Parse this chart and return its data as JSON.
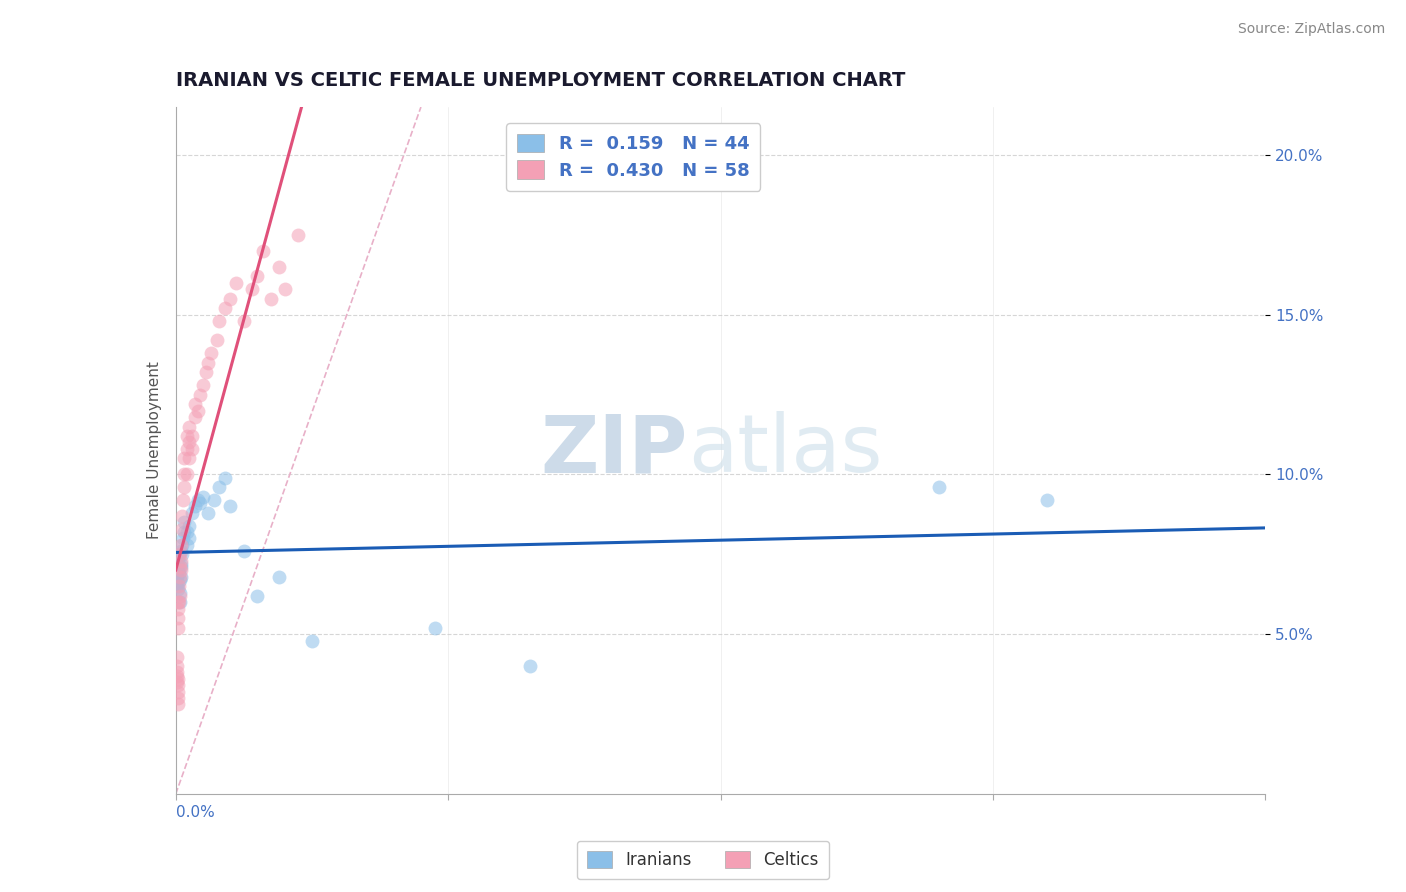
{
  "title": "IRANIAN VS CELTIC FEMALE UNEMPLOYMENT CORRELATION CHART",
  "source": "Source: ZipAtlas.com",
  "ylabel": "Female Unemployment",
  "yaxis_ticks": [
    0.05,
    0.1,
    0.15,
    0.2
  ],
  "yaxis_labels": [
    "5.0%",
    "10.0%",
    "15.0%",
    "20.0%"
  ],
  "xlim": [
    0.0,
    0.4
  ],
  "ylim": [
    0.0,
    0.215
  ],
  "legend_entries": [
    {
      "label": "R =  0.159   N = 44",
      "color": "#8bbfe8"
    },
    {
      "label": "R =  0.430   N = 58",
      "color": "#f4a0b5"
    }
  ],
  "iranian_x": [
    0.0005,
    0.0005,
    0.0006,
    0.0007,
    0.0008,
    0.0009,
    0.001,
    0.001,
    0.0012,
    0.0013,
    0.0015,
    0.0016,
    0.0017,
    0.0018,
    0.002,
    0.002,
    0.002,
    0.0022,
    0.0024,
    0.0025,
    0.003,
    0.003,
    0.004,
    0.004,
    0.005,
    0.005,
    0.006,
    0.007,
    0.008,
    0.009,
    0.01,
    0.012,
    0.014,
    0.016,
    0.018,
    0.02,
    0.025,
    0.03,
    0.038,
    0.05,
    0.095,
    0.13,
    0.28,
    0.32
  ],
  "iranian_y": [
    0.068,
    0.072,
    0.065,
    0.07,
    0.064,
    0.071,
    0.073,
    0.066,
    0.069,
    0.075,
    0.06,
    0.063,
    0.067,
    0.071,
    0.068,
    0.072,
    0.076,
    0.075,
    0.078,
    0.08,
    0.082,
    0.085,
    0.078,
    0.082,
    0.08,
    0.084,
    0.088,
    0.09,
    0.092,
    0.091,
    0.093,
    0.088,
    0.092,
    0.096,
    0.099,
    0.09,
    0.076,
    0.062,
    0.068,
    0.048,
    0.052,
    0.04,
    0.096,
    0.092
  ],
  "celtic_x": [
    0.0003,
    0.0004,
    0.0005,
    0.0005,
    0.0006,
    0.0007,
    0.0007,
    0.0008,
    0.0009,
    0.0009,
    0.001,
    0.001,
    0.001,
    0.001,
    0.0012,
    0.0013,
    0.0014,
    0.0015,
    0.0016,
    0.0017,
    0.0018,
    0.002,
    0.002,
    0.0022,
    0.0023,
    0.0025,
    0.003,
    0.003,
    0.003,
    0.004,
    0.004,
    0.004,
    0.005,
    0.005,
    0.005,
    0.006,
    0.006,
    0.007,
    0.007,
    0.008,
    0.009,
    0.01,
    0.011,
    0.012,
    0.013,
    0.015,
    0.016,
    0.018,
    0.02,
    0.022,
    0.025,
    0.028,
    0.03,
    0.032,
    0.035,
    0.038,
    0.04,
    0.045
  ],
  "celtic_y": [
    0.04,
    0.043,
    0.037,
    0.038,
    0.035,
    0.032,
    0.034,
    0.03,
    0.036,
    0.028,
    0.06,
    0.055,
    0.058,
    0.052,
    0.065,
    0.06,
    0.062,
    0.068,
    0.071,
    0.075,
    0.073,
    0.07,
    0.078,
    0.083,
    0.087,
    0.092,
    0.096,
    0.1,
    0.105,
    0.1,
    0.108,
    0.112,
    0.105,
    0.11,
    0.115,
    0.108,
    0.112,
    0.118,
    0.122,
    0.12,
    0.125,
    0.128,
    0.132,
    0.135,
    0.138,
    0.142,
    0.148,
    0.152,
    0.155,
    0.16,
    0.148,
    0.158,
    0.162,
    0.17,
    0.155,
    0.165,
    0.158,
    0.175
  ],
  "iranian_color": "#8bbfe8",
  "celtic_color": "#f4a0b5",
  "iranian_line_color": "#1a5cb5",
  "celtic_line_color": "#e0507a",
  "ref_line_color": "#e8b0c8",
  "background_color": "#ffffff",
  "grid_color": "#cccccc",
  "title_color": "#1a1a2e",
  "watermark_color": "#cddcec",
  "marker_size": 100,
  "marker_alpha": 0.55
}
